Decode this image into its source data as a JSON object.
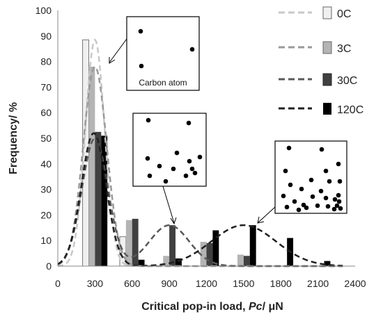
{
  "chart_data": {
    "type": "bar",
    "xlabel_main": "Critical pop-in load, ",
    "xlabel_var": "Pc",
    "xlabel_unit": "/ μN",
    "ylabel": "Frequency/ %",
    "xlim": [
      0,
      2400
    ],
    "ylim": [
      0,
      100
    ],
    "x_ticks": [
      "0",
      "300",
      "600",
      "900",
      "1200",
      "1500",
      "1800",
      "2100",
      "2400"
    ],
    "y_ticks": [
      "0",
      "10",
      "20",
      "30",
      "40",
      "50",
      "60",
      "70",
      "80",
      "90",
      "100"
    ],
    "grid": false,
    "legend_position": "right",
    "series": [
      {
        "name": "0C",
        "color": "#f0f0f0",
        "line_color": "#c8c8c8",
        "bars": [
          {
            "x": 225,
            "y": 88.5
          },
          {
            "x": 525,
            "y": 11.5
          }
        ]
      },
      {
        "name": "3C",
        "color": "#b4b4b4",
        "line_color": "#999999",
        "bars": [
          {
            "x": 275,
            "y": 78
          },
          {
            "x": 575,
            "y": 18
          },
          {
            "x": 875,
            "y": 4
          },
          {
            "x": 1175,
            "y": 9.5
          },
          {
            "x": 1475,
            "y": 4.5
          }
        ]
      },
      {
        "name": "30C",
        "color": "#404040",
        "line_color": "#595959",
        "bars": [
          {
            "x": 325,
            "y": 52.5
          },
          {
            "x": 625,
            "y": 18.5
          },
          {
            "x": 925,
            "y": 16
          },
          {
            "x": 1225,
            "y": 9
          },
          {
            "x": 1525,
            "y": 4
          }
        ]
      },
      {
        "name": "120C",
        "color": "#000000",
        "line_color": "#202020",
        "bars": [
          {
            "x": 375,
            "y": 51
          },
          {
            "x": 675,
            "y": 2.5
          },
          {
            "x": 975,
            "y": 3
          },
          {
            "x": 1275,
            "y": 14
          },
          {
            "x": 1575,
            "y": 16
          },
          {
            "x": 1875,
            "y": 11
          },
          {
            "x": 2175,
            "y": 2
          }
        ]
      }
    ],
    "fit_curves": [
      {
        "series": "0C",
        "components": [
          {
            "amp": 88.5,
            "mu": 300,
            "sigma": 78
          }
        ]
      },
      {
        "series": "3C",
        "components": [
          {
            "amp": 78,
            "mu": 300,
            "sigma": 95
          }
        ]
      },
      {
        "series": "30C",
        "components": [
          {
            "amp": 50,
            "mu": 300,
            "sigma": 105
          },
          {
            "amp": 16,
            "mu": 900,
            "sigma": 160
          }
        ]
      },
      {
        "series": "120C",
        "components": [
          {
            "amp": 52,
            "mu": 290,
            "sigma": 100
          },
          {
            "amp": 16,
            "mu": 1500,
            "sigma": 260
          }
        ]
      }
    ],
    "annotations": [
      {
        "label": "Carbon atom",
        "dot_count": 3,
        "points_to": "3C peak"
      },
      {
        "label": "",
        "dot_count": 13,
        "points_to": "30C second peak"
      },
      {
        "label": "",
        "dot_count": 27,
        "points_to": "120C second peak"
      }
    ]
  }
}
